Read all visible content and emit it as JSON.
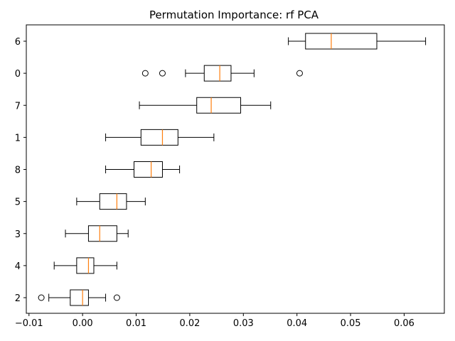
{
  "chart_data": {
    "type": "boxplot",
    "orientation": "horizontal",
    "title": "Permutation Importance: rf PCA",
    "xlabel": "",
    "ylabel": "",
    "xlim": [
      -0.0105,
      0.0675
    ],
    "xticks": [
      -0.01,
      0.0,
      0.01,
      0.02,
      0.03,
      0.04,
      0.05,
      0.06
    ],
    "xtick_labels": [
      "−0.01",
      "0.00",
      "0.01",
      "0.02",
      "0.03",
      "0.04",
      "0.05",
      "0.06"
    ],
    "grid": false,
    "box_color": "#000000",
    "median_color": "#ff7f0e",
    "categories": [
      "2",
      "4",
      "3",
      "5",
      "8",
      "1",
      "7",
      "0",
      "6"
    ],
    "boxes": [
      {
        "label": "2",
        "whisker_low": -0.0063,
        "q1": -0.0023,
        "median": 0.0,
        "q3": 0.0011,
        "whisker_high": 0.0043,
        "outliers": [
          -0.0077,
          0.0064
        ]
      },
      {
        "label": "4",
        "whisker_low": -0.0053,
        "q1": -0.0011,
        "median": 0.0011,
        "q3": 0.0021,
        "whisker_high": 0.0064,
        "outliers": []
      },
      {
        "label": "3",
        "whisker_low": -0.0032,
        "q1": 0.0011,
        "median": 0.0032,
        "q3": 0.0064,
        "whisker_high": 0.0085,
        "outliers": []
      },
      {
        "label": "5",
        "whisker_low": -0.0011,
        "q1": 0.0032,
        "median": 0.0064,
        "q3": 0.0082,
        "whisker_high": 0.0117,
        "outliers": []
      },
      {
        "label": "8",
        "whisker_low": 0.0043,
        "q1": 0.0096,
        "median": 0.0128,
        "q3": 0.0149,
        "whisker_high": 0.0181,
        "outliers": []
      },
      {
        "label": "1",
        "whisker_low": 0.0043,
        "q1": 0.0109,
        "median": 0.0149,
        "q3": 0.0178,
        "whisker_high": 0.0245,
        "outliers": []
      },
      {
        "label": "7",
        "whisker_low": 0.0106,
        "q1": 0.0213,
        "median": 0.024,
        "q3": 0.0295,
        "whisker_high": 0.0351,
        "outliers": []
      },
      {
        "label": "0",
        "whisker_low": 0.0192,
        "q1": 0.0227,
        "median": 0.0256,
        "q3": 0.0277,
        "whisker_high": 0.032,
        "outliers": [
          0.0117,
          0.0149,
          0.0405
        ]
      },
      {
        "label": "6",
        "whisker_low": 0.0384,
        "q1": 0.0416,
        "median": 0.0464,
        "q3": 0.0549,
        "whisker_high": 0.064,
        "outliers": []
      }
    ]
  }
}
